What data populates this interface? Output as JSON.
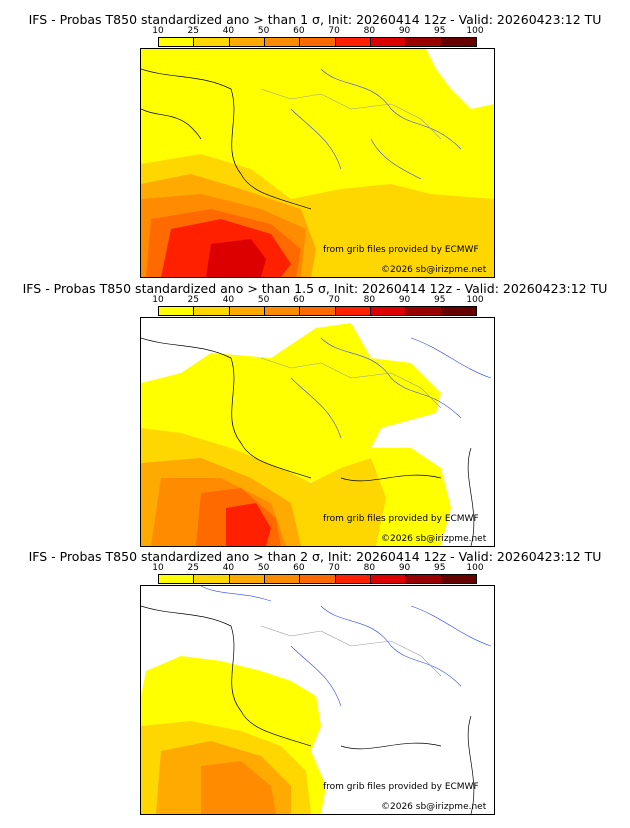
{
  "panels": [
    {
      "title": "IFS - Probas T850  standardized ano > than 1 σ, Init: 20260414 12z - Valid: 20260423:12 TU"
    },
    {
      "title": "IFS - Probas T850  standardized ano > than 1.5 σ, Init: 20260414 12z - Valid: 20260423:12 TU"
    },
    {
      "title": "IFS - Probas T850  standardized ano > than 2 σ, Init: 20260414 12z - Valid: 20260423:12 TU"
    }
  ],
  "colorbar": {
    "ticks": [
      "10",
      "25",
      "40",
      "50",
      "60",
      "70",
      "80",
      "90",
      "95",
      "100"
    ],
    "colors": [
      "#ffff00",
      "#ffd700",
      "#ffaa00",
      "#ff8c00",
      "#ff6a00",
      "#ff2000",
      "#dd0000",
      "#990000",
      "#660000"
    ]
  },
  "credits": {
    "source": "from grib files provided by ECMWF",
    "copyright": "©2026 sb@irizpme.net"
  }
}
